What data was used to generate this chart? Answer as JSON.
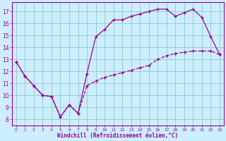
{
  "title": "",
  "xlabel": "Windchill (Refroidissement éolien,°C)",
  "ylabel": "",
  "background_color": "#cceeff",
  "grid_color": "#99cccc",
  "line_color": "#990099",
  "xlim": [
    -0.5,
    23.5
  ],
  "ylim": [
    7.5,
    17.8
  ],
  "yticks": [
    8,
    9,
    10,
    11,
    12,
    13,
    14,
    15,
    16,
    17
  ],
  "xticks": [
    0,
    1,
    2,
    3,
    4,
    5,
    6,
    7,
    8,
    9,
    10,
    11,
    12,
    13,
    14,
    15,
    16,
    17,
    18,
    19,
    20,
    21,
    22,
    23
  ],
  "upper_x": [
    0,
    1,
    2,
    3,
    4,
    5,
    6,
    7,
    8,
    9,
    10,
    11,
    12,
    13,
    14,
    15,
    16,
    17,
    18,
    19,
    20,
    21,
    22,
    23
  ],
  "upper_y": [
    12.8,
    11.6,
    10.8,
    10.0,
    9.9,
    8.2,
    9.2,
    8.5,
    11.8,
    14.9,
    15.5,
    16.3,
    16.3,
    16.6,
    16.8,
    17.0,
    17.2,
    17.2,
    16.6,
    16.9,
    17.2,
    16.5,
    14.9,
    13.4
  ],
  "lower_x": [
    0,
    1,
    2,
    3,
    4,
    5,
    6,
    7,
    8,
    9,
    10,
    11,
    12,
    13,
    14,
    15,
    16,
    17,
    18,
    19,
    20,
    21,
    22,
    23
  ],
  "lower_y": [
    12.8,
    11.6,
    10.8,
    10.0,
    9.9,
    8.2,
    9.2,
    8.5,
    10.8,
    11.2,
    11.5,
    11.7,
    11.9,
    12.1,
    12.3,
    12.5,
    13.0,
    13.3,
    13.5,
    13.6,
    13.7,
    13.7,
    13.7,
    13.4
  ]
}
